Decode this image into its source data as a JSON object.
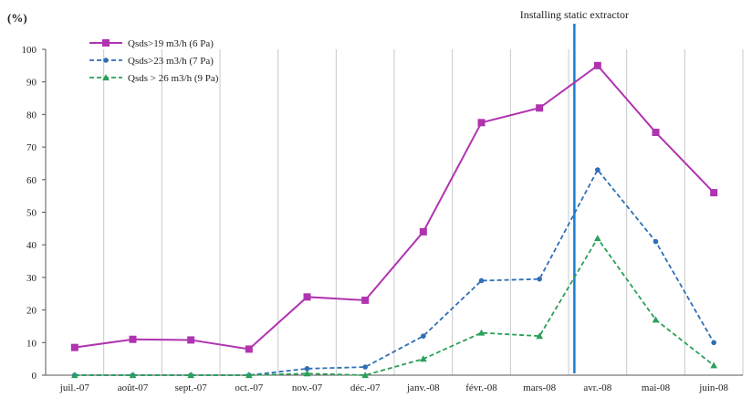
{
  "chart_data": {
    "type": "line",
    "title": "",
    "xlabel": "",
    "ylabel": "(%)",
    "ylim": [
      0,
      100
    ],
    "yticks": [
      0,
      10,
      20,
      30,
      40,
      50,
      60,
      70,
      80,
      90,
      100
    ],
    "categories": [
      "juil.-07",
      "août-07",
      "sept.-07",
      "oct.-07",
      "nov.-07",
      "déc.-07",
      "janv.-08",
      "févr.-08",
      "mars-08",
      "avr.-08",
      "mai-08",
      "juin-08"
    ],
    "grid": "vertical",
    "legend": "top-left",
    "series": [
      {
        "name": "Qsds>19 m3/h (6 Pa)",
        "values": [
          8.5,
          11,
          10.8,
          8,
          24,
          23,
          44,
          77.5,
          82,
          95,
          74.5,
          56
        ],
        "color": "#b033b0",
        "marker": "square",
        "dash": "solid"
      },
      {
        "name": "Qsds>23 m3/h (7 Pa)",
        "values": [
          0,
          0,
          0,
          0,
          2,
          2.5,
          12,
          29,
          29.5,
          63,
          41,
          10
        ],
        "color": "#2f6fb5",
        "marker": "circle",
        "dash": "dashed"
      },
      {
        "name": "Qsds > 26 m3/h (9 Pa)",
        "values": [
          0,
          0,
          0,
          0,
          0.5,
          0,
          5,
          13,
          12,
          42,
          17,
          3
        ],
        "color": "#2aa05a",
        "marker": "triangle",
        "dash": "dashed"
      }
    ],
    "annotations": [
      {
        "text": "Installing static extractor",
        "x": 8.6,
        "color": "#1a7fd0"
      }
    ]
  }
}
